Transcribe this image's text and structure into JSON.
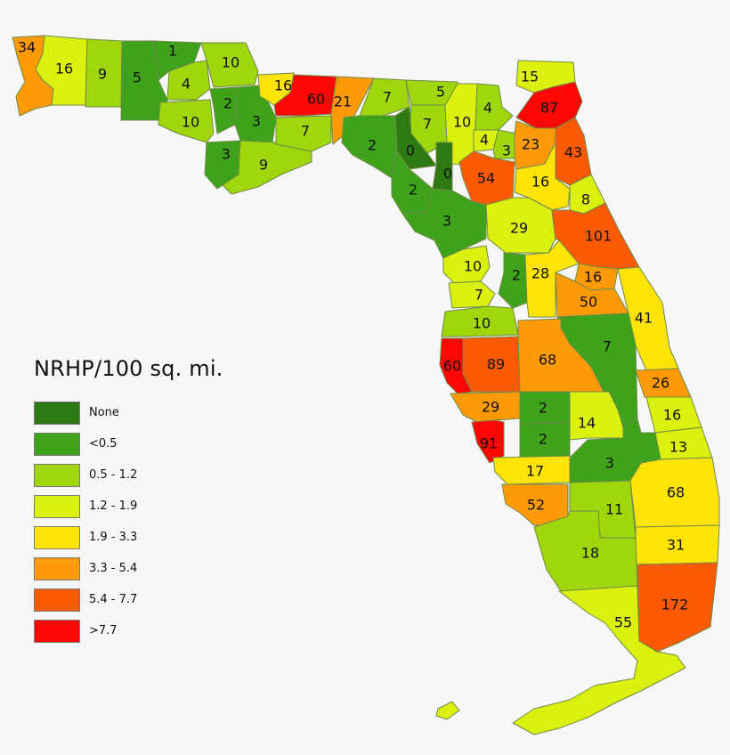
{
  "legend": {
    "title": "NRHP/100 sq. mi.",
    "classes": [
      {
        "label": "None",
        "color": "#2e7a12"
      },
      {
        "label": "<0.5",
        "color": "#3ea31a"
      },
      {
        "label": "0.5 - 1.2",
        "color": "#9fd60c"
      },
      {
        "label": "1.2 - 1.9",
        "color": "#dcf00e"
      },
      {
        "label": "1.9 - 3.3",
        "color": "#fde406"
      },
      {
        "label": "3.3 - 5.4",
        "color": "#fd9a06"
      },
      {
        "label": "5.4 - 7.7",
        "color": "#fd5a06"
      },
      {
        "label": ">7.7",
        "color": "#fd0606"
      }
    ]
  },
  "county_values": [
    "34",
    "16",
    "9",
    "5",
    "1",
    "10",
    "4",
    "10",
    "2",
    "3",
    "3",
    "9",
    "16",
    "60",
    "21",
    "7",
    "5",
    "7",
    "10",
    "4",
    "4",
    "3",
    "0",
    "0",
    "2",
    "2",
    "3",
    "7",
    "87",
    "15",
    "23",
    "43",
    "54",
    "16",
    "8",
    "29",
    "101",
    "10",
    "2",
    "28",
    "7",
    "16",
    "50",
    "10",
    "41",
    "7",
    "60",
    "89",
    "68",
    "26",
    "29",
    "2",
    "2",
    "14",
    "16",
    "91",
    "13",
    "3",
    "17",
    "68",
    "52",
    "11",
    "31",
    "18",
    "172",
    "55"
  ]
}
